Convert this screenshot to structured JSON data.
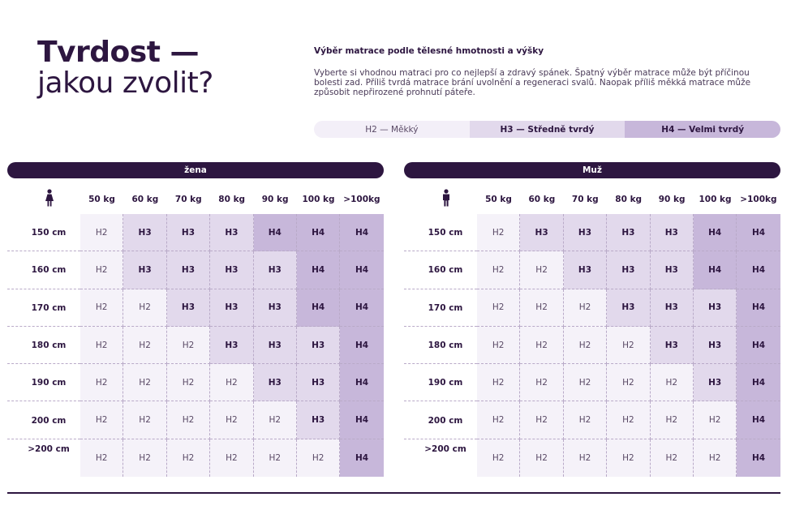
{
  "title": {
    "line1": "Tvrdost —",
    "line2": "jakou zvolit?"
  },
  "intro": {
    "heading": "Výběr matrace podle tělesné hmotnosti a výšky",
    "text": "Vyberte si vhodnou matraci pro co nejlepší a zdravý spánek. Špatný výběr matrace může být příčinou bolesti zad. Příliš tvrdá matrace brání uvolnění a regeneraci svalů. Naopak příliš měkká matrace může způsobit nepřirozené prohnutí páteře."
  },
  "legend": {
    "h2": "H2 — Měkký",
    "h3": "H3 — Středně tvrdý",
    "h4": "H4 — Velmi tvrdý"
  },
  "weights": [
    "50 kg",
    "60 kg",
    "70 kg",
    "80 kg",
    "90 kg",
    "100 kg",
    ">100kg"
  ],
  "heights": [
    "150 cm",
    "160 cm",
    "170 cm",
    "180 cm",
    "190 cm",
    "200 cm",
    ">200 cm"
  ],
  "tables": [
    {
      "header": "žena",
      "icon": "woman-icon",
      "rows": [
        [
          "H2",
          "H3",
          "H3",
          "H3",
          "H4",
          "H4",
          "H4"
        ],
        [
          "H2",
          "H3",
          "H3",
          "H3",
          "H3",
          "H4",
          "H4"
        ],
        [
          "H2",
          "H2",
          "H3",
          "H3",
          "H3",
          "H4",
          "H4"
        ],
        [
          "H2",
          "H2",
          "H2",
          "H3",
          "H3",
          "H3",
          "H4"
        ],
        [
          "H2",
          "H2",
          "H2",
          "H2",
          "H3",
          "H3",
          "H4"
        ],
        [
          "H2",
          "H2",
          "H2",
          "H2",
          "H2",
          "H3",
          "H4"
        ],
        [
          "H2",
          "H2",
          "H2",
          "H2",
          "H2",
          "H2",
          "H4"
        ]
      ]
    },
    {
      "header": "Muž",
      "icon": "man-icon",
      "rows": [
        [
          "H2",
          "H3",
          "H3",
          "H3",
          "H3",
          "H4",
          "H4"
        ],
        [
          "H2",
          "H2",
          "H3",
          "H3",
          "H3",
          "H4",
          "H4"
        ],
        [
          "H2",
          "H2",
          "H2",
          "H3",
          "H3",
          "H3",
          "H4"
        ],
        [
          "H2",
          "H2",
          "H2",
          "H2",
          "H3",
          "H3",
          "H4"
        ],
        [
          "H2",
          "H2",
          "H2",
          "H2",
          "H2",
          "H3",
          "H4"
        ],
        [
          "H2",
          "H2",
          "H2",
          "H2",
          "H2",
          "H2",
          "H4"
        ],
        [
          "H2",
          "H2",
          "H2",
          "H2",
          "H2",
          "H2",
          "H4"
        ]
      ]
    }
  ],
  "colors": {
    "dark": "#2d1640",
    "h2": "#f5f2f9",
    "h3": "#e2d9ec",
    "h4": "#c7b7da"
  }
}
